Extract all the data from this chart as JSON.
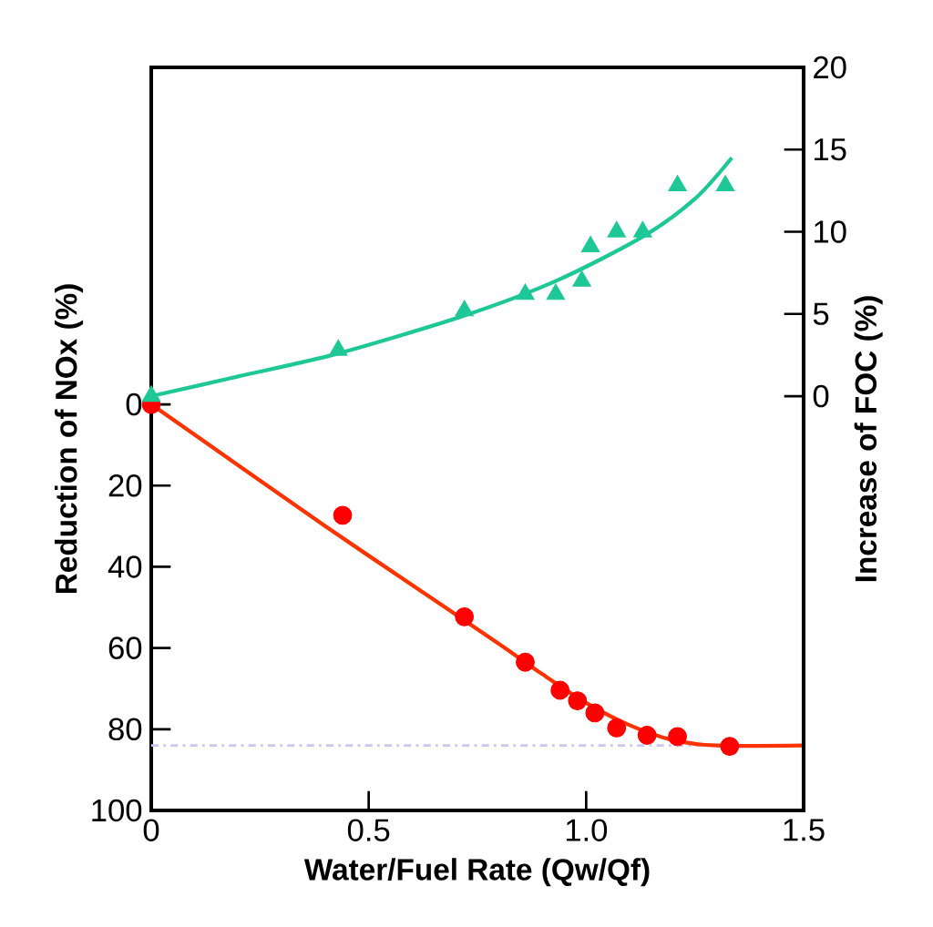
{
  "chart_data": {
    "type": "scatter",
    "xlabel": "Water/Fuel Rate (Qw/Qf)",
    "ylabel": "Reduction of NOx (%)",
    "y2label": "Increase of FOC (%)",
    "xlim": [
      0,
      1.5
    ],
    "xticks": [
      0,
      0.5,
      {
        "value": 1.0,
        "label": "1.0"
      },
      1.5
    ],
    "ylim": [
      100,
      -83
    ],
    "yticks": [
      0,
      20,
      40,
      60,
      80,
      100
    ],
    "y2lim": [
      -25.2,
      20
    ],
    "y2ticks": [
      0,
      5,
      10,
      15,
      20
    ],
    "grid": false,
    "ref_lines": [
      {
        "axis": "y",
        "value": 84,
        "color": "#c8c8f0",
        "line_style": "dashdot"
      }
    ],
    "series": [
      {
        "type": "line",
        "color": "#ff3300",
        "marker": "none",
        "x": [
          0,
          0.2,
          0.4,
          0.6,
          0.8,
          0.9,
          1.0,
          1.1,
          1.2,
          1.3,
          1.5
        ],
        "values": [
          0,
          15,
          30,
          44.5,
          59,
          66.5,
          73.5,
          79,
          82.7,
          84,
          84
        ]
      },
      {
        "color": "#ff0000",
        "marker": "circle",
        "x": [
          0,
          0.44,
          0.72,
          0.86,
          0.94,
          0.98,
          1.02,
          1.07,
          1.14,
          1.21,
          1.33
        ],
        "values": [
          0,
          27.3,
          52.3,
          63.5,
          70.4,
          73,
          76,
          79.7,
          81.5,
          81.8,
          84.2
        ]
      },
      {
        "type": "line",
        "axis": "y2",
        "color": "#1ec896",
        "marker": "none",
        "x": [
          0,
          0.2,
          0.43,
          0.72,
          0.93,
          1.13,
          1.25,
          1.335
        ],
        "values": [
          0,
          1.2,
          2.6,
          4.9,
          7.0,
          9.7,
          12.0,
          14.5
        ]
      },
      {
        "axis": "y2",
        "color": "#1ec896",
        "marker": "triangle",
        "x": [
          0,
          0.43,
          0.72,
          0.86,
          0.93,
          0.99,
          1.01,
          1.07,
          1.13,
          1.21,
          1.32
        ],
        "values": [
          0,
          2.8,
          5.2,
          6.2,
          6.2,
          7.0,
          9.1,
          10.0,
          10.0,
          12.8,
          12.8
        ]
      }
    ]
  }
}
